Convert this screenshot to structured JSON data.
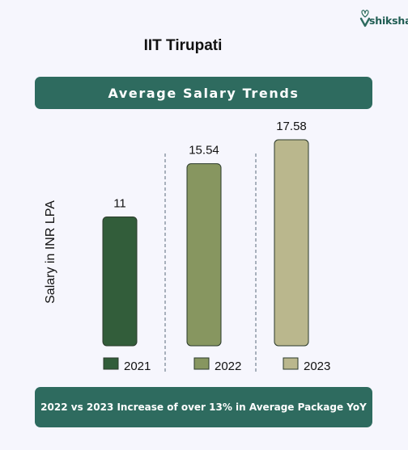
{
  "brand": {
    "logo_text": "shiksha"
  },
  "page": {
    "title": "IIT Tirupati"
  },
  "banner": {
    "text": "Average Salary Trends"
  },
  "footer": {
    "text": "2022 vs 2023 Increase of over 13% in Average Package YoY"
  },
  "chart_data": {
    "type": "bar",
    "title": "Average Salary Trends",
    "ylabel": "Salary in INR LPA",
    "xlabel": "",
    "categories": [
      "2021",
      "2022",
      "2023"
    ],
    "values": [
      11,
      15.54,
      17.58
    ],
    "value_labels": [
      "11",
      "15.54",
      "17.58"
    ],
    "colors": [
      "#325d3a",
      "#879660",
      "#bab78d"
    ],
    "ylim": [
      0,
      17.58
    ],
    "grid": false,
    "legend_position": "bottom",
    "legend": [
      "2021",
      "2022",
      "2023"
    ]
  }
}
